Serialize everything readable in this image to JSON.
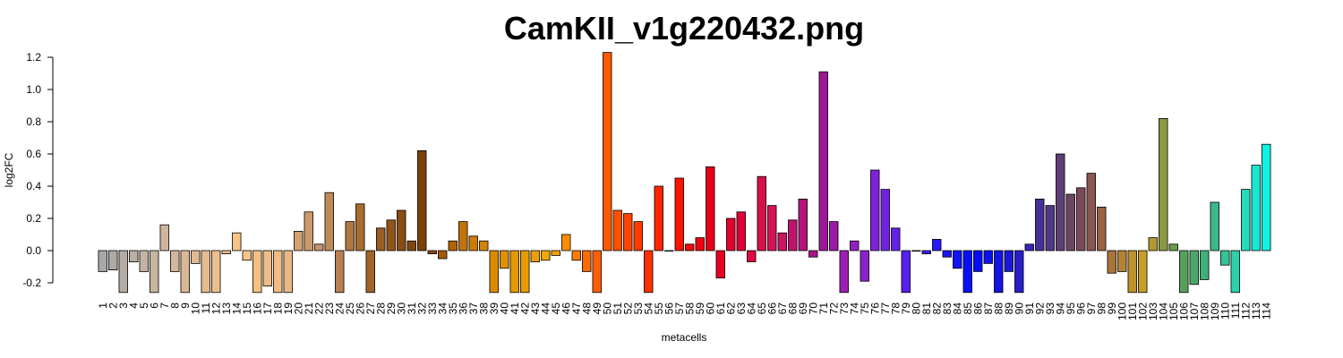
{
  "chart_data": {
    "type": "bar",
    "title": "CamKII_v1g220432.png",
    "xlabel": "metacells",
    "ylabel": "log2FC",
    "ylim": [
      -0.26,
      1.24
    ],
    "yticks": [
      -0.2,
      0.0,
      0.2,
      0.4,
      0.6,
      0.8,
      1.0,
      1.2
    ],
    "ytick_labels": [
      "-0.2",
      "0.0",
      "0.2",
      "0.4",
      "0.6",
      "0.8",
      "1.0",
      "1.2"
    ],
    "grid": false,
    "legend": "none",
    "categories": [
      "1",
      "2",
      "3",
      "4",
      "5",
      "6",
      "7",
      "8",
      "9",
      "10",
      "11",
      "12",
      "13",
      "14",
      "15",
      "16",
      "17",
      "18",
      "19",
      "20",
      "21",
      "22",
      "23",
      "24",
      "25",
      "26",
      "27",
      "28",
      "29",
      "30",
      "31",
      "32",
      "33",
      "34",
      "35",
      "36",
      "37",
      "38",
      "39",
      "40",
      "41",
      "42",
      "43",
      "44",
      "45",
      "46",
      "47",
      "48",
      "49",
      "50",
      "51",
      "52",
      "53",
      "54",
      "55",
      "56",
      "57",
      "58",
      "59",
      "60",
      "61",
      "62",
      "63",
      "64",
      "65",
      "66",
      "67",
      "68",
      "69",
      "70",
      "71",
      "72",
      "73",
      "74",
      "75",
      "76",
      "77",
      "78",
      "79",
      "80",
      "81",
      "82",
      "83",
      "84",
      "85",
      "86",
      "87",
      "88",
      "89",
      "90",
      "91",
      "92",
      "93",
      "94",
      "95",
      "96",
      "97",
      "98",
      "99",
      "100",
      "101",
      "102",
      "103",
      "104",
      "105",
      "106",
      "107",
      "108",
      "109",
      "110",
      "111",
      "112",
      "113",
      "114"
    ],
    "values": [
      -0.13,
      -0.12,
      -0.26,
      -0.07,
      -0.13,
      -0.26,
      0.16,
      -0.13,
      -0.26,
      -0.08,
      -0.26,
      -0.26,
      -0.02,
      0.11,
      -0.06,
      -0.26,
      -0.22,
      -0.26,
      -0.26,
      0.12,
      0.24,
      0.04,
      0.36,
      -0.26,
      0.18,
      0.29,
      -0.26,
      0.14,
      0.19,
      0.25,
      0.06,
      0.62,
      -0.02,
      -0.05,
      0.06,
      0.18,
      0.09,
      0.06,
      -0.26,
      -0.11,
      -0.26,
      -0.26,
      -0.07,
      -0.06,
      -0.03,
      0.1,
      -0.06,
      -0.13,
      -0.26,
      1.23,
      0.25,
      0.23,
      0.18,
      -0.26,
      0.4,
      0.0,
      0.45,
      0.04,
      0.08,
      0.52,
      -0.17,
      0.2,
      0.24,
      -0.07,
      0.46,
      0.28,
      0.11,
      0.19,
      0.32,
      -0.04,
      1.11,
      0.18,
      -0.26,
      0.06,
      -0.19,
      0.5,
      0.38,
      0.14,
      -0.26,
      0.0,
      -0.02,
      0.07,
      -0.04,
      -0.11,
      -0.26,
      -0.13,
      -0.08,
      -0.26,
      -0.13,
      -0.26,
      0.04,
      0.32,
      0.28,
      0.6,
      0.35,
      0.39,
      0.48,
      0.27,
      -0.14,
      -0.13,
      -0.26,
      -0.26,
      0.08,
      0.82,
      0.04,
      -0.26,
      -0.21,
      -0.18,
      0.3,
      -0.09,
      -0.26,
      0.38,
      0.53,
      0.66
    ],
    "colors": [
      "#a8a8a8",
      "#aeaaa6",
      "#b4aca4",
      "#bcb0a4",
      "#c2b4a4",
      "#c8b6a0",
      "#ceb69e",
      "#d4b69a",
      "#dab896",
      "#e0ba92",
      "#e6bc8e",
      "#ecbe8c",
      "#f2c08a",
      "#f6c488",
      "#f8c48a",
      "#f8c080",
      "#eebc84",
      "#f0bc82",
      "#e8b884",
      "#d4a070",
      "#cc9a6a",
      "#c8926a",
      "#c08a5a",
      "#b88050",
      "#b07640",
      "#a86c30",
      "#a26428",
      "#9a5c20",
      "#925418",
      "#8a4c12",
      "#82460e",
      "#7c400a",
      "#8a4a08",
      "#a25808",
      "#b06404",
      "#c07404",
      "#cc7c04",
      "#d48404",
      "#dc8a04",
      "#e09004",
      "#e49804",
      "#e89a04",
      "#eca004",
      "#f2a604",
      "#f6a204",
      "#fa8e04",
      "#fc7c04",
      "#fe6a04",
      "#ff5e04",
      "#ff5a02",
      "#ff5000",
      "#ff4400",
      "#ff3a00",
      "#ff3000",
      "#ff2600",
      "#ff1c00",
      "#ff1200",
      "#f80808",
      "#f00010",
      "#e80018",
      "#e60022",
      "#e4002c",
      "#e00036",
      "#dc0a40",
      "#d8104a",
      "#d41456",
      "#cc1462",
      "#c0126e",
      "#b4147a",
      "#a81888",
      "#9c1896",
      "#9a1ca4",
      "#9a20b2",
      "#9420c0",
      "#8a22cc",
      "#7e22d8",
      "#7022e0",
      "#6422e6",
      "#5820ec",
      "#4a1eee",
      "#3a1cf0",
      "#2a1af2",
      "#1c18f4",
      "#1014f6",
      "#0810f8",
      "#040cf8",
      "#0c10f0",
      "#1414e4",
      "#1c18d8",
      "#2a1ecc",
      "#3a26b4",
      "#463098",
      "#523884",
      "#5e3e74",
      "#6c4464",
      "#7a4a58",
      "#8a5650",
      "#9a6244",
      "#a8743a",
      "#b48232",
      "#be922c",
      "#c69e28",
      "#b09a30",
      "#8a9a40",
      "#6c9c4c",
      "#58a05a",
      "#4ca86a",
      "#40b07a",
      "#3ab888",
      "#34c498",
      "#2cd0aa",
      "#24dcbc",
      "#18e8d0",
      "#0ef4e4",
      "#00ffff"
    ]
  }
}
